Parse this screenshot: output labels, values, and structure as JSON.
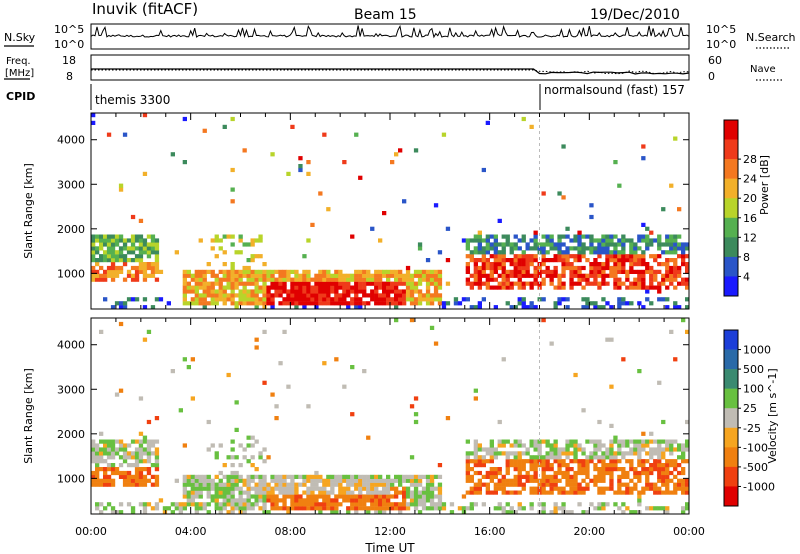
{
  "header": {
    "station": "Inuvik (fitACF)",
    "beam": "Beam 15",
    "date": "19/Dec/2010"
  },
  "strip_labels": {
    "nsky": "N.Sky",
    "nsky_ticks": [
      "10^5",
      "10^0"
    ],
    "nsearch": "N.Search",
    "freq_top": "Freq.",
    "freq_unit": "[MHz]",
    "freq_ticks": [
      "18",
      "8"
    ],
    "nave": "Nave",
    "nave_ticks": [
      "60",
      "0"
    ],
    "cpid": "CPID"
  },
  "cpid_segments": [
    {
      "label": "themis 3300",
      "start_hour": 0
    },
    {
      "label": "normalsound (fast) 157",
      "start_hour": 18
    }
  ],
  "colors": {
    "power_scale": [
      "#1a1aff",
      "#2a55c8",
      "#3c8a5c",
      "#55b050",
      "#b8d42a",
      "#f2b02a",
      "#f47820",
      "#ef3a1a",
      "#e00000"
    ],
    "velocity_scale": [
      "#1c3ed8",
      "#2a6aa8",
      "#3a8a70",
      "#68c040",
      "#c0bcb4",
      "#f6a520",
      "#f08010",
      "#f04010",
      "#e00000"
    ]
  },
  "chart_data": [
    {
      "type": "heatmap",
      "name": "power",
      "xlabel": "",
      "ylabel": "Slant Range [km]",
      "xlim": [
        0,
        24
      ],
      "ylim": [
        200,
        4600
      ],
      "yticks": [
        "1000",
        "2000",
        "3000",
        "4000"
      ],
      "colorbar_label": "Power [dB]",
      "colorbar_ticks": [
        "4",
        "8",
        "12",
        "16",
        "20",
        "24",
        "28"
      ]
    },
    {
      "type": "heatmap",
      "name": "velocity",
      "xlabel": "Time UT",
      "ylabel": "Slant Range [km]",
      "xlim": [
        0,
        24
      ],
      "ylim": [
        200,
        4600
      ],
      "xticks": [
        "00:00",
        "04:00",
        "08:00",
        "12:00",
        "16:00",
        "20:00",
        "00:00"
      ],
      "yticks": [
        "1000",
        "2000",
        "3000",
        "4000"
      ],
      "colorbar_label": "Velocity [m s^-1]",
      "colorbar_ticks": [
        "1000",
        "500",
        "100",
        "25",
        "-25",
        "-100",
        "-500",
        "-1000"
      ]
    }
  ]
}
